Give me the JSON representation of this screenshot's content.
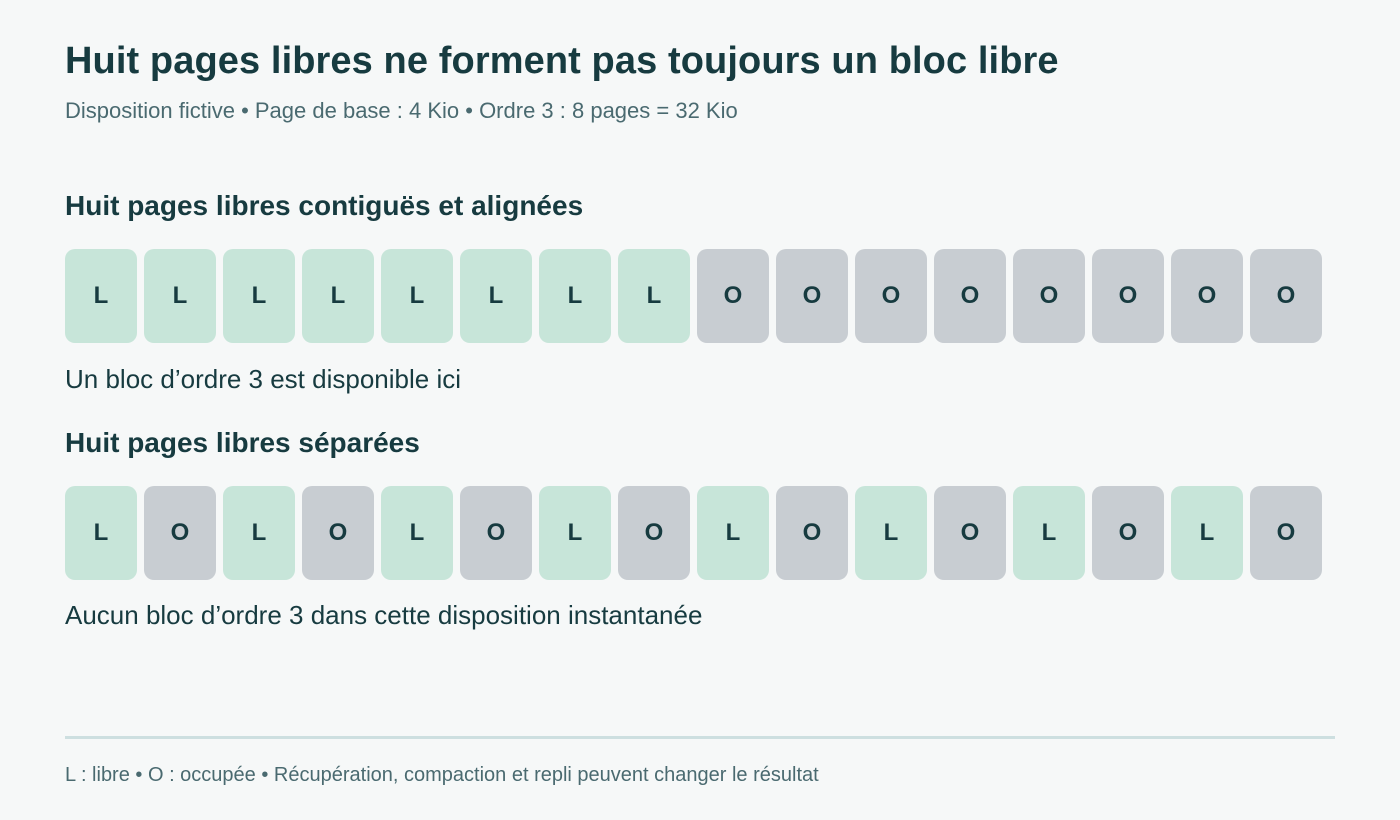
{
  "header": {
    "title": "Huit pages libres ne forment pas toujours un bloc libre",
    "subtitle": "Disposition fictive • Page de base : 4 Kio • Ordre 3 : 8 pages = 32 Kio"
  },
  "sections": [
    {
      "title": "Huit pages libres contiguës et alignées",
      "pages": [
        "L",
        "L",
        "L",
        "L",
        "L",
        "L",
        "L",
        "L",
        "O",
        "O",
        "O",
        "O",
        "O",
        "O",
        "O",
        "O"
      ],
      "caption": "Un bloc d’ordre 3 est disponible ici"
    },
    {
      "title": "Huit pages libres séparées",
      "pages": [
        "L",
        "O",
        "L",
        "O",
        "L",
        "O",
        "L",
        "O",
        "L",
        "O",
        "L",
        "O",
        "L",
        "O",
        "L",
        "O"
      ],
      "caption": "Aucun bloc d’ordre 3 dans cette disposition instantanée"
    }
  ],
  "footer": {
    "legend": "L : libre • O : occupée • Récupération, compaction et repli peuvent changer le résultat"
  },
  "colors": {
    "free": "#c7e5d9",
    "used": "#c8cdd2",
    "text": "#173b40",
    "muted": "#4a6a70",
    "background": "#f6f8f8"
  }
}
